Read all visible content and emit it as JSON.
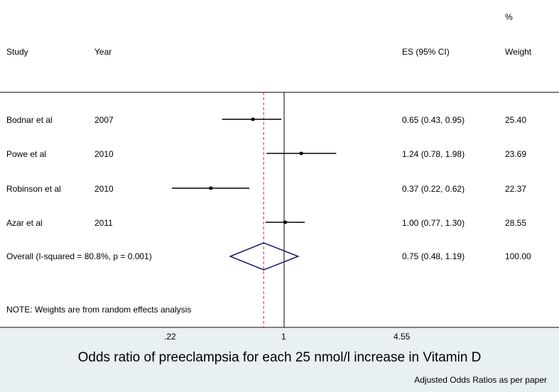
{
  "header": {
    "study": "Study",
    "year": "Year",
    "es": "ES (95% CI)",
    "weight_top": "%",
    "weight": "Weight"
  },
  "rows": [
    {
      "study": "Bodnar et al",
      "year": "2007",
      "es_text": "0.65 (0.43, 0.95)",
      "weight": "25.40"
    },
    {
      "study": "Powe et al",
      "year": "2010",
      "es_text": "1.24 (0.78, 1.98)",
      "weight": "23.69"
    },
    {
      "study": "Robinson et al",
      "year": "2010",
      "es_text": "0.37 (0.22, 0.62)",
      "weight": "22.37"
    },
    {
      "study": "Azar et al",
      "year": "2011",
      "es_text": "1.00 (0.77, 1.30)",
      "weight": "28.55"
    }
  ],
  "overall": {
    "label": "Overall  (I-squared = 80.8%, p = 0.001)",
    "es_text": "0.75 (0.48, 1.19)",
    "weight": "100.00"
  },
  "note": "NOTE: Weights are from random effects analysis",
  "x_ticks": [
    ".22",
    "1",
    "4.55"
  ],
  "x_title": "Odds ratio of preeclampsia for each 25 nmol/l increase in Vitamin D",
  "footnote": "Adjusted Odds Ratios as per paper",
  "colors": {
    "null_line": "#000000",
    "overall_line": "#b03030",
    "diamond": "#1a1a6e",
    "panel_bg": "#e8f0f3"
  },
  "chart_data": {
    "type": "forest",
    "scale": "log",
    "xlim": [
      0.22,
      4.55
    ],
    "null_value": 1,
    "studies": [
      {
        "name": "Bodnar et al",
        "year": 2007,
        "es": 0.65,
        "lo": 0.43,
        "hi": 0.95,
        "weight": 25.4
      },
      {
        "name": "Powe et al",
        "year": 2010,
        "es": 1.24,
        "lo": 0.78,
        "hi": 1.98,
        "weight": 23.69
      },
      {
        "name": "Robinson et al",
        "year": 2010,
        "es": 0.37,
        "lo": 0.22,
        "hi": 0.62,
        "weight": 22.37
      },
      {
        "name": "Azar et al",
        "year": 2011,
        "es": 1.0,
        "lo": 0.77,
        "hi": 1.3,
        "weight": 28.55
      }
    ],
    "overall": {
      "es": 0.75,
      "lo": 0.48,
      "hi": 1.19,
      "weight": 100.0
    }
  }
}
